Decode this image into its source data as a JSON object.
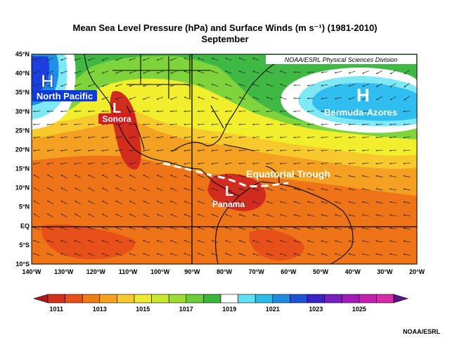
{
  "title": "Mean Sea Level Pressure (hPa) and Surface Winds (m s⁻¹) (1981-2010)",
  "subtitle": "September",
  "source_box": "NOAA/ESRL Physical Sciences Division",
  "credit": "NOAA/ESRL",
  "lat_labels": [
    "45°N",
    "40°N",
    "35°N",
    "30°N",
    "25°N",
    "20°N",
    "15°N",
    "10°N",
    "5°N",
    "EQ",
    "5°S",
    "10°S"
  ],
  "lon_labels": [
    "140°W",
    "130°W",
    "120°W",
    "110°W",
    "100°W",
    "90°W",
    "80°W",
    "70°W",
    "60°W",
    "50°W",
    "40°W",
    "30°W",
    "20°W"
  ],
  "colorbar": {
    "labels": [
      "1011",
      "1013",
      "1015",
      "1017",
      "1019",
      "1021",
      "1023",
      "1025"
    ],
    "colors": [
      "#b01818",
      "#d2301e",
      "#e8501a",
      "#f07a16",
      "#f5a21e",
      "#f7c930",
      "#e9e92e",
      "#c8e62e",
      "#9bdb34",
      "#6bcc3a",
      "#3cb53c",
      "#ffffff",
      "#62e0f0",
      "#2bbce6",
      "#1e8de0",
      "#1f52d8",
      "#3a22c6",
      "#7a1ec2",
      "#a41cb8",
      "#c41fae",
      "#d62aa6",
      "#5a1486"
    ]
  },
  "features": [
    {
      "symbol": "H",
      "label": "North Pacific",
      "color": "#ffffff",
      "badge": "#0b3ad8"
    },
    {
      "symbol": "L",
      "label": "Sonora",
      "color": "#ffffff",
      "badge": "#d21e1e"
    },
    {
      "symbol": "H",
      "label": "Bermuda-Azores",
      "color": "#ffffff",
      "badge": "#0b6fd8"
    },
    {
      "symbol": "L",
      "label": "Panama",
      "color": "#ffffff",
      "badge": "#d21e1e"
    }
  ],
  "trough_label": "Equatorial Trough",
  "palette": {
    "deep_blue": "#1e3fe0",
    "mid_blue": "#1f8fe6",
    "light_blue": "#30bdf0",
    "cyan": "#7ee8f5",
    "white": "#ffffff",
    "green": "#40b844",
    "lightgreen": "#7ed43a",
    "yellowgreen": "#c6e22a",
    "yellow": "#f1ee2c",
    "gold": "#f7c92c",
    "orange": "#f4a020",
    "darkorange": "#ef7418",
    "redorange": "#e8501a",
    "red": "#d22c1e",
    "darkred": "#b41818"
  }
}
